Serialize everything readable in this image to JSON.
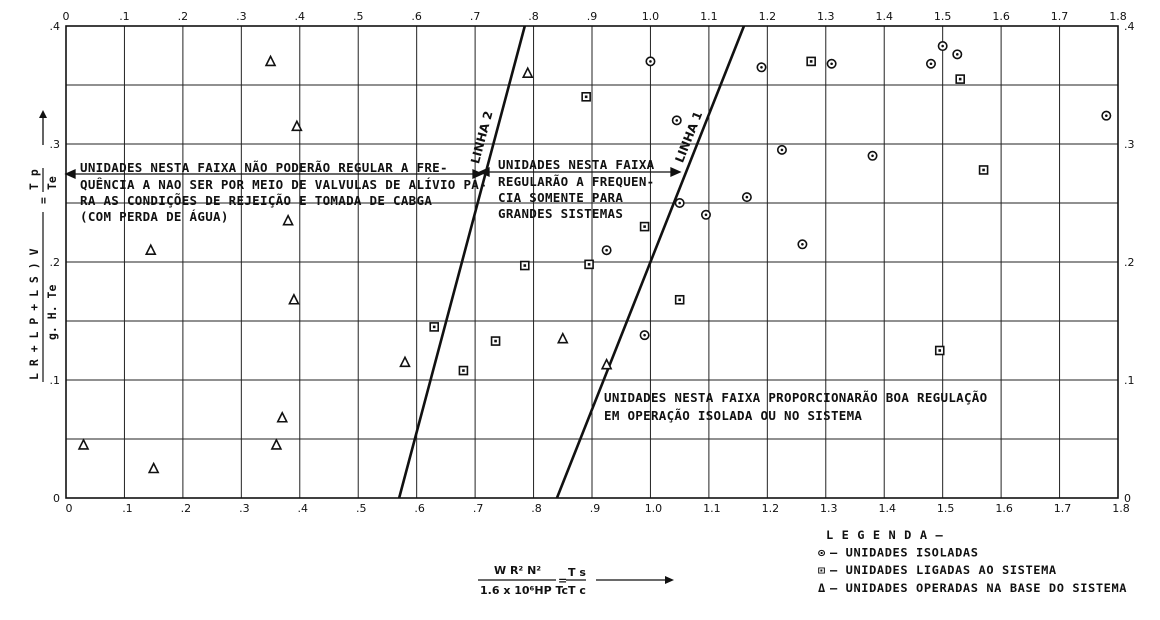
{
  "chart_data": {
    "type": "scatter",
    "x_ticks_top": [
      "0",
      ".1",
      ".2",
      ".3",
      ".4",
      ".5",
      ".6",
      ".7",
      ".8",
      ".9",
      "1.0",
      "1.1",
      "1.2",
      "1.3",
      "1.4",
      "1.5",
      "1.6",
      "1.7",
      "1.8"
    ],
    "x_ticks_bottom": [
      "0",
      ".1",
      ".2",
      ".3",
      ".4",
      ".5",
      ".6",
      ".7",
      ".8",
      ".9",
      "1.0",
      "1.1",
      "1.2",
      "1.3",
      "1.4",
      "1.5",
      "1.6",
      "1.7",
      "1.8"
    ],
    "y_ticks_left": [
      "0",
      ".1",
      ".2",
      ".3",
      ".4"
    ],
    "y_ticks_right": [
      "0",
      ".1",
      ".2",
      ".3",
      ".4"
    ],
    "xlim": [
      0,
      1.8
    ],
    "ylim": [
      0,
      0.4
    ],
    "grid": true,
    "ylabel": {
      "numerator": "L R + L P + L S ) V",
      "denominator": "g. H. Te",
      "equals": "=",
      "ratio_num": "T p",
      "ratio_den": "Te"
    },
    "xlabel": {
      "numerator": "W R² N²",
      "denominator": "1.6 x 10⁶HP Tc",
      "equals": "=",
      "ratio_num": "T s",
      "ratio_den": "T c"
    },
    "lines": [
      {
        "name": "LINHA 2",
        "points": [
          [
            0.57,
            0.0
          ],
          [
            0.785,
            0.4
          ]
        ]
      },
      {
        "name": "LINHA 1",
        "points": [
          [
            0.84,
            0.0
          ],
          [
            1.16,
            0.4
          ]
        ]
      }
    ],
    "annotations": [
      "UNIDADES NESTA FAIXA NÃO PODERÃO REGULAR A FRE-",
      "QUÊNCIA A NAO SER POR MEIO DE VALVULAS DE ALÍVIO PA-",
      "RA AS CONDIÇÕES DE REJEIÇÃO E TOMADA DE CABGA",
      "(COM PERDA DE ÁGUA)",
      "UNIDADES NESTA FAIXA",
      "REGULARÃO A FREQUEN-",
      "CIA SOMENTE PARA",
      "GRANDES SISTEMAS",
      "UNIDADES NESTA FAIXA PROPORCIONARÃO BOA REGULAÇÃO",
      "EM OPERAÇÃO ISOLADA OU NO SISTEMA"
    ],
    "series": [
      {
        "name": "UNIDADES ISOLADAS",
        "marker": "circle-dot",
        "x": [
          1.0,
          1.045,
          1.05,
          1.095,
          0.925,
          0.99,
          1.165,
          1.19,
          1.225,
          1.26,
          1.31,
          1.38,
          1.48,
          1.5,
          1.525,
          1.78
        ],
        "y": [
          0.37,
          0.32,
          0.25,
          0.24,
          0.21,
          0.138,
          0.255,
          0.365,
          0.295,
          0.215,
          0.368,
          0.29,
          0.368,
          0.383,
          0.376,
          0.324
        ]
      },
      {
        "name": "UNIDADES LIGADAS AO SISTEMA",
        "marker": "square-dot",
        "x": [
          0.63,
          0.68,
          0.735,
          0.785,
          0.89,
          0.895,
          0.99,
          1.05,
          1.275,
          1.495,
          1.53,
          1.57
        ],
        "y": [
          0.145,
          0.108,
          0.133,
          0.197,
          0.34,
          0.198,
          0.23,
          0.168,
          0.37,
          0.125,
          0.355,
          0.278
        ]
      },
      {
        "name": "UNIDADES OPERADAS NA BASE DO SISTEMA",
        "marker": "triangle",
        "x": [
          0.03,
          0.145,
          0.15,
          0.35,
          0.36,
          0.37,
          0.38,
          0.39,
          0.395,
          0.58,
          0.79,
          0.85,
          0.925
        ],
        "y": [
          0.045,
          0.21,
          0.025,
          0.37,
          0.045,
          0.068,
          0.235,
          0.168,
          0.315,
          0.115,
          0.36,
          0.135,
          0.113
        ]
      }
    ],
    "legend": {
      "title": "L E G E N D A –",
      "placement": "bottom-right",
      "items": [
        {
          "symbol": "⊙",
          "label": "– UNIDADES  ISOLADAS"
        },
        {
          "symbol": "⊡",
          "label": "– UNIDADES LIGADAS AO SISTEMA"
        },
        {
          "symbol": "Δ",
          "label": "– UNIDADES  OPERADAS NA BASE DO SISTEMA"
        }
      ]
    }
  }
}
